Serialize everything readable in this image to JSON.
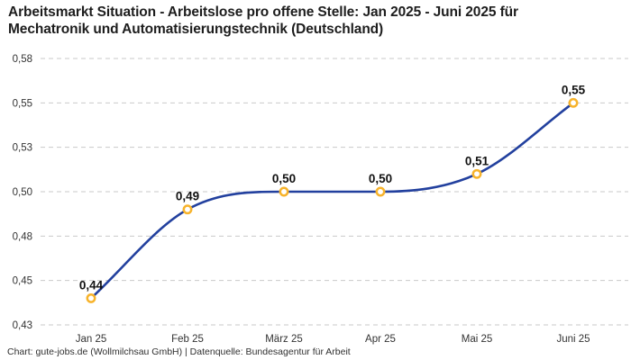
{
  "header": {
    "title": "Arbeitsmarkt Situation - Arbeitslose pro offene Stelle: Jan 2025 - Juni 2025 für\nMechatronik und Automatisierungstechnik (Deutschland)"
  },
  "footer": {
    "attribution": "Chart: gute-jobs.de (Wollmilchsau GmbH) | Datenquelle: Bundesagentur für Arbeit"
  },
  "chart_data": {
    "type": "line",
    "title": "Arbeitsmarkt Situation - Arbeitslose pro offene Stelle: Jan 2025 - Juni 2025 für Mechatronik und Automatisierungstechnik (Deutschland)",
    "categories": [
      "Jan 25",
      "Feb 25",
      "März 25",
      "Apr 25",
      "Mai 25",
      "Juni 25"
    ],
    "values": [
      0.44,
      0.49,
      0.5,
      0.5,
      0.51,
      0.55
    ],
    "value_labels": [
      "0,44",
      "0,49",
      "0,50",
      "0,50",
      "0,51",
      "0,55"
    ],
    "yticks": [
      {
        "value": 0.575,
        "label": "0,58"
      },
      {
        "value": 0.55,
        "label": "0,55"
      },
      {
        "value": 0.525,
        "label": "0,53"
      },
      {
        "value": 0.5,
        "label": "0,50"
      },
      {
        "value": 0.475,
        "label": "0,48"
      },
      {
        "value": 0.45,
        "label": "0,45"
      },
      {
        "value": 0.425,
        "label": "0,43"
      }
    ],
    "ylim": [
      0.425,
      0.575
    ],
    "xlabel": "",
    "ylabel": "",
    "grid": "horizontal-dashed",
    "legend": "none",
    "colors": {
      "line": "#22409e",
      "marker_ring": "#f7b32b",
      "marker_fill": "#ffffff",
      "gridline": "#c9c9c9",
      "title_text": "#1d1d1d",
      "tick_text": "#333333",
      "value_text": "#111111",
      "footer_text": "#303030",
      "background": "#ffffff"
    }
  }
}
